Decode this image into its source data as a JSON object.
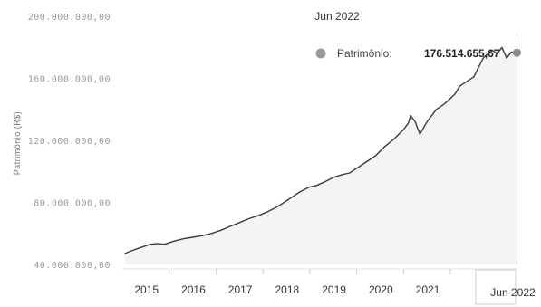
{
  "chart_data": {
    "type": "area",
    "ylabel": "Patrimônio (R$)",
    "xlabel": "",
    "ylim": [
      40000000,
      200000000
    ],
    "xlim": [
      2014.0,
      2022.45
    ],
    "y_ticks": [
      40000000,
      80000000,
      120000000,
      160000000,
      200000000
    ],
    "y_tick_labels": [
      "40.000.000,00",
      "80.000.000,00",
      "120.000.000,00",
      "160.000.000,00",
      "200.000.000,00"
    ],
    "x_ticks": [
      2015,
      2016,
      2017,
      2018,
      2019,
      2020,
      2021
    ],
    "x_tick_labels": [
      "2015",
      "2016",
      "2017",
      "2018",
      "2019",
      "2020",
      "2021"
    ],
    "grid": false,
    "colors": {
      "line": "#3a3a3a",
      "fill": "#f4f4f6",
      "marker": "#8a8a8a",
      "crosshair": "#dddddd"
    },
    "series": [
      {
        "name": "Patrimônio",
        "x": [
          2014.05,
          2014.3,
          2014.6,
          2014.75,
          2014.9,
          2015.1,
          2015.3,
          2015.5,
          2015.7,
          2015.9,
          2016.1,
          2016.3,
          2016.5,
          2016.7,
          2016.9,
          2017.1,
          2017.3,
          2017.5,
          2017.65,
          2017.8,
          2018.0,
          2018.15,
          2018.3,
          2018.5,
          2018.7,
          2018.85,
          2019.0,
          2019.2,
          2019.4,
          2019.6,
          2019.8,
          2020.0,
          2020.1,
          2020.15,
          2020.25,
          2020.35,
          2020.5,
          2020.7,
          2020.85,
          2021.0,
          2021.1,
          2021.2,
          2021.35,
          2021.5,
          2021.6,
          2021.7,
          2021.8,
          2021.9,
          2022.0,
          2022.1,
          2022.2,
          2022.3,
          2022.42
        ],
        "y": [
          47000000,
          50000000,
          53000000,
          53500000,
          53000000,
          55000000,
          56500000,
          57500000,
          58500000,
          60000000,
          62000000,
          64500000,
          67000000,
          69500000,
          71500000,
          74000000,
          77000000,
          81000000,
          84000000,
          87000000,
          90000000,
          91000000,
          93000000,
          96000000,
          98000000,
          99000000,
          102000000,
          106000000,
          110000000,
          116000000,
          121000000,
          127000000,
          131000000,
          136000000,
          132000000,
          124000000,
          132000000,
          140000000,
          143000000,
          147000000,
          150000000,
          155000000,
          158000000,
          161000000,
          167000000,
          173000000,
          176000000,
          178000000,
          176000000,
          180000000,
          173000000,
          177000000,
          176514655.67
        ]
      }
    ],
    "highlight": {
      "x": 2022.42,
      "x_label": "Jun 2022",
      "value": 176514655.67,
      "value_label": "176.514.655,67",
      "series_label": "Patrimônio:"
    }
  }
}
